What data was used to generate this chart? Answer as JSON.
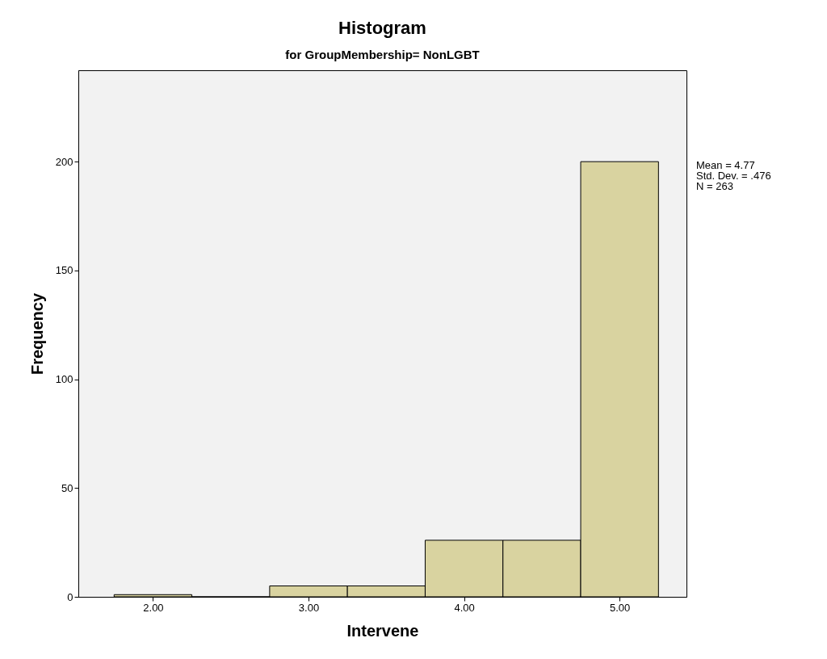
{
  "chart_data": {
    "type": "histogram",
    "title": "Histogram",
    "subtitle": "for GroupMembership= NonLGBT",
    "xlabel": "Intervene",
    "ylabel": "Frequency",
    "bins": [
      1.75,
      2.25,
      2.75,
      3.25,
      3.75,
      4.25,
      4.75,
      5.25
    ],
    "values": [
      1,
      0,
      5,
      5,
      26,
      26,
      200
    ],
    "color": "#d9d3a0",
    "xlim": [
      1.52,
      5.43
    ],
    "ylim": [
      0,
      242
    ],
    "xticks": [
      {
        "value": 2,
        "label": "2.00"
      },
      {
        "value": 3,
        "label": "3.00"
      },
      {
        "value": 4,
        "label": "4.00"
      },
      {
        "value": 5,
        "label": "5.00"
      }
    ],
    "yticks": [
      0,
      50,
      100,
      150,
      200
    ],
    "annotations": [
      "Mean = 4.77",
      "Std. Dev. = .476",
      "N = 263"
    ],
    "grid": false
  }
}
